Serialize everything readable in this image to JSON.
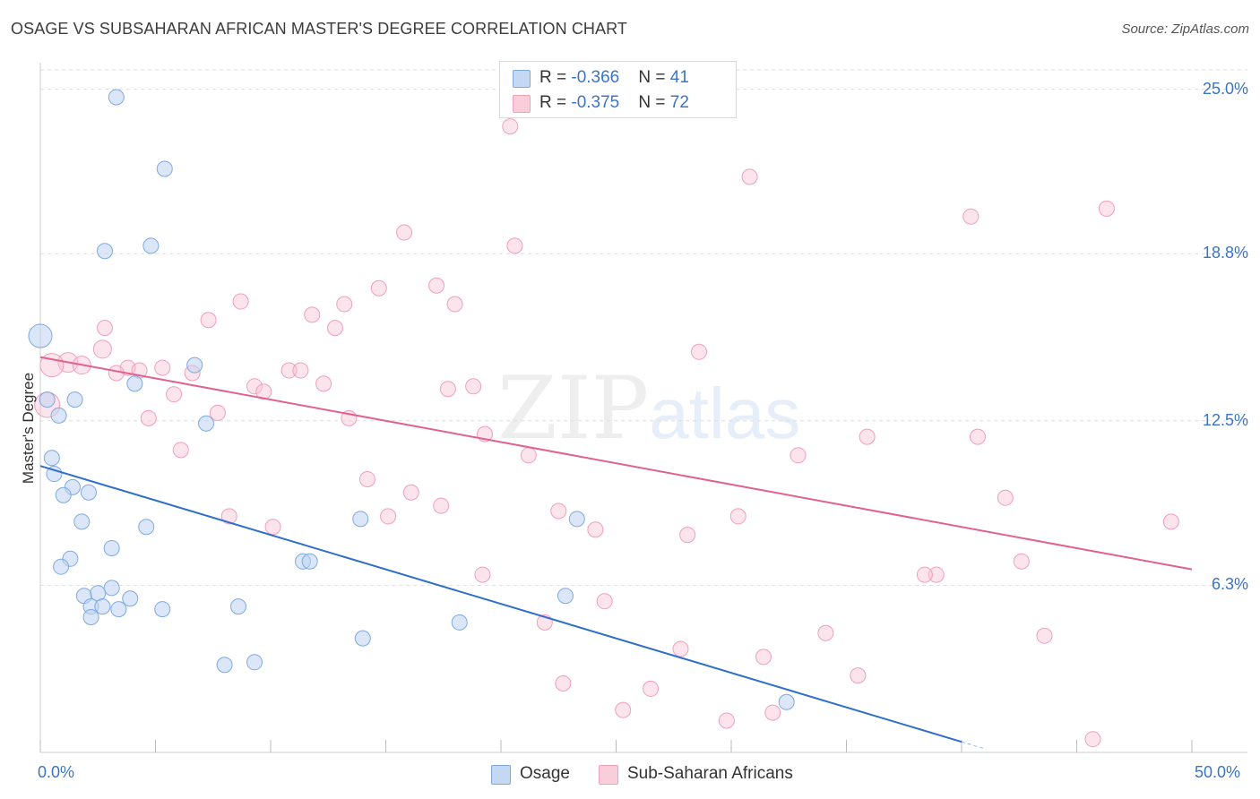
{
  "title": "OSAGE VS SUBSAHARAN AFRICAN MASTER'S DEGREE CORRELATION CHART",
  "source": "Source: ZipAtlas.com",
  "watermark": {
    "zip": "ZIP",
    "atlas": "atlas"
  },
  "legend_top": [
    {
      "r_label": "R = ",
      "r_value": "-0.366",
      "n_label": "N = ",
      "n_value": "41"
    },
    {
      "r_label": "R = ",
      "r_value": "-0.375",
      "n_label": "N = ",
      "n_value": "72"
    }
  ],
  "legend_bottom": [
    "Osage",
    "Sub-Saharan Africans"
  ],
  "colors": {
    "osage": "#7fa9e0",
    "osage_line": "#2f6fcc",
    "ssa": "#f0a0b8",
    "ssa_line": "#e0628f",
    "axis_label": "#3b74c7",
    "grid": "#dedede"
  },
  "chart_data": {
    "type": "scatter",
    "title": "OSAGE VS SUBSAHARAN AFRICAN MASTER'S DEGREE CORRELATION CHART",
    "xlabel": "",
    "ylabel": "Master's Degree",
    "xlim": [
      0,
      50
    ],
    "ylim": [
      0,
      26
    ],
    "x_tick_labels": [
      "0.0%",
      "50.0%"
    ],
    "y_ticks": [
      6.3,
      12.5,
      18.8,
      25.0
    ],
    "y_tick_labels": [
      "6.3%",
      "12.5%",
      "18.8%",
      "25.0%"
    ],
    "grid": true,
    "legend_position": "top-center",
    "series": [
      {
        "name": "Osage",
        "points": [
          [
            3.3,
            24.7
          ],
          [
            5.4,
            22.0
          ],
          [
            2.8,
            18.9
          ],
          [
            4.8,
            19.1
          ],
          [
            0.0,
            15.7
          ],
          [
            0.3,
            13.3
          ],
          [
            1.5,
            13.3
          ],
          [
            0.8,
            12.7
          ],
          [
            4.1,
            13.9
          ],
          [
            6.7,
            14.6
          ],
          [
            7.2,
            12.4
          ],
          [
            0.5,
            11.1
          ],
          [
            0.6,
            10.5
          ],
          [
            1.4,
            10.0
          ],
          [
            1.0,
            9.7
          ],
          [
            2.1,
            9.8
          ],
          [
            1.8,
            8.7
          ],
          [
            4.6,
            8.5
          ],
          [
            3.1,
            7.7
          ],
          [
            1.3,
            7.3
          ],
          [
            0.9,
            7.0
          ],
          [
            11.4,
            7.2
          ],
          [
            11.7,
            7.2
          ],
          [
            3.1,
            6.2
          ],
          [
            1.9,
            5.9
          ],
          [
            2.5,
            6.0
          ],
          [
            3.9,
            5.8
          ],
          [
            2.2,
            5.5
          ],
          [
            2.7,
            5.5
          ],
          [
            3.4,
            5.4
          ],
          [
            5.3,
            5.4
          ],
          [
            8.6,
            5.5
          ],
          [
            2.2,
            5.1
          ],
          [
            18.2,
            4.9
          ],
          [
            14.0,
            4.3
          ],
          [
            13.9,
            8.8
          ],
          [
            22.8,
            5.9
          ],
          [
            23.3,
            8.8
          ],
          [
            8.0,
            3.3
          ],
          [
            9.3,
            3.4
          ],
          [
            32.4,
            1.9
          ]
        ],
        "trend": [
          [
            0,
            10.8
          ],
          [
            40,
            0.4
          ]
        ]
      },
      {
        "name": "Sub-Saharan Africans",
        "points": [
          [
            20.4,
            23.6
          ],
          [
            30.8,
            21.7
          ],
          [
            15.8,
            19.6
          ],
          [
            20.6,
            19.1
          ],
          [
            40.4,
            20.2
          ],
          [
            46.3,
            20.5
          ],
          [
            14.7,
            17.5
          ],
          [
            17.2,
            17.6
          ],
          [
            8.7,
            17.0
          ],
          [
            11.8,
            16.5
          ],
          [
            13.2,
            16.9
          ],
          [
            18.0,
            16.9
          ],
          [
            7.3,
            16.3
          ],
          [
            12.8,
            16.0
          ],
          [
            2.8,
            16.0
          ],
          [
            1.2,
            14.7
          ],
          [
            2.7,
            15.2
          ],
          [
            0.5,
            14.6
          ],
          [
            1.8,
            14.6
          ],
          [
            3.8,
            14.5
          ],
          [
            4.3,
            14.4
          ],
          [
            5.3,
            14.5
          ],
          [
            3.3,
            14.3
          ],
          [
            6.6,
            14.3
          ],
          [
            10.8,
            14.4
          ],
          [
            11.3,
            14.4
          ],
          [
            28.6,
            15.1
          ],
          [
            9.3,
            13.8
          ],
          [
            9.7,
            13.6
          ],
          [
            12.3,
            13.9
          ],
          [
            18.8,
            13.8
          ],
          [
            17.7,
            13.7
          ],
          [
            5.8,
            13.5
          ],
          [
            0.3,
            13.1
          ],
          [
            7.7,
            12.8
          ],
          [
            4.7,
            12.6
          ],
          [
            13.4,
            12.6
          ],
          [
            19.3,
            12.0
          ],
          [
            21.2,
            11.2
          ],
          [
            6.1,
            11.4
          ],
          [
            32.9,
            11.2
          ],
          [
            35.9,
            11.9
          ],
          [
            40.7,
            11.9
          ],
          [
            14.2,
            10.3
          ],
          [
            16.1,
            9.8
          ],
          [
            17.4,
            9.3
          ],
          [
            22.5,
            9.1
          ],
          [
            41.9,
            9.6
          ],
          [
            49.1,
            8.7
          ],
          [
            8.2,
            8.9
          ],
          [
            10.1,
            8.5
          ],
          [
            15.1,
            8.9
          ],
          [
            24.1,
            8.4
          ],
          [
            28.1,
            8.2
          ],
          [
            30.3,
            8.9
          ],
          [
            38.9,
            6.7
          ],
          [
            42.6,
            7.2
          ],
          [
            19.2,
            6.7
          ],
          [
            24.5,
            5.7
          ],
          [
            21.9,
            4.9
          ],
          [
            34.1,
            4.5
          ],
          [
            43.6,
            4.4
          ],
          [
            27.8,
            3.9
          ],
          [
            31.4,
            3.6
          ],
          [
            35.5,
            2.9
          ],
          [
            22.7,
            2.6
          ],
          [
            26.5,
            2.4
          ],
          [
            25.3,
            1.6
          ],
          [
            29.8,
            1.2
          ],
          [
            31.8,
            1.5
          ],
          [
            45.7,
            0.5
          ],
          [
            38.4,
            6.7
          ]
        ],
        "trend": [
          [
            0,
            14.9
          ],
          [
            50,
            6.9
          ]
        ]
      }
    ]
  }
}
